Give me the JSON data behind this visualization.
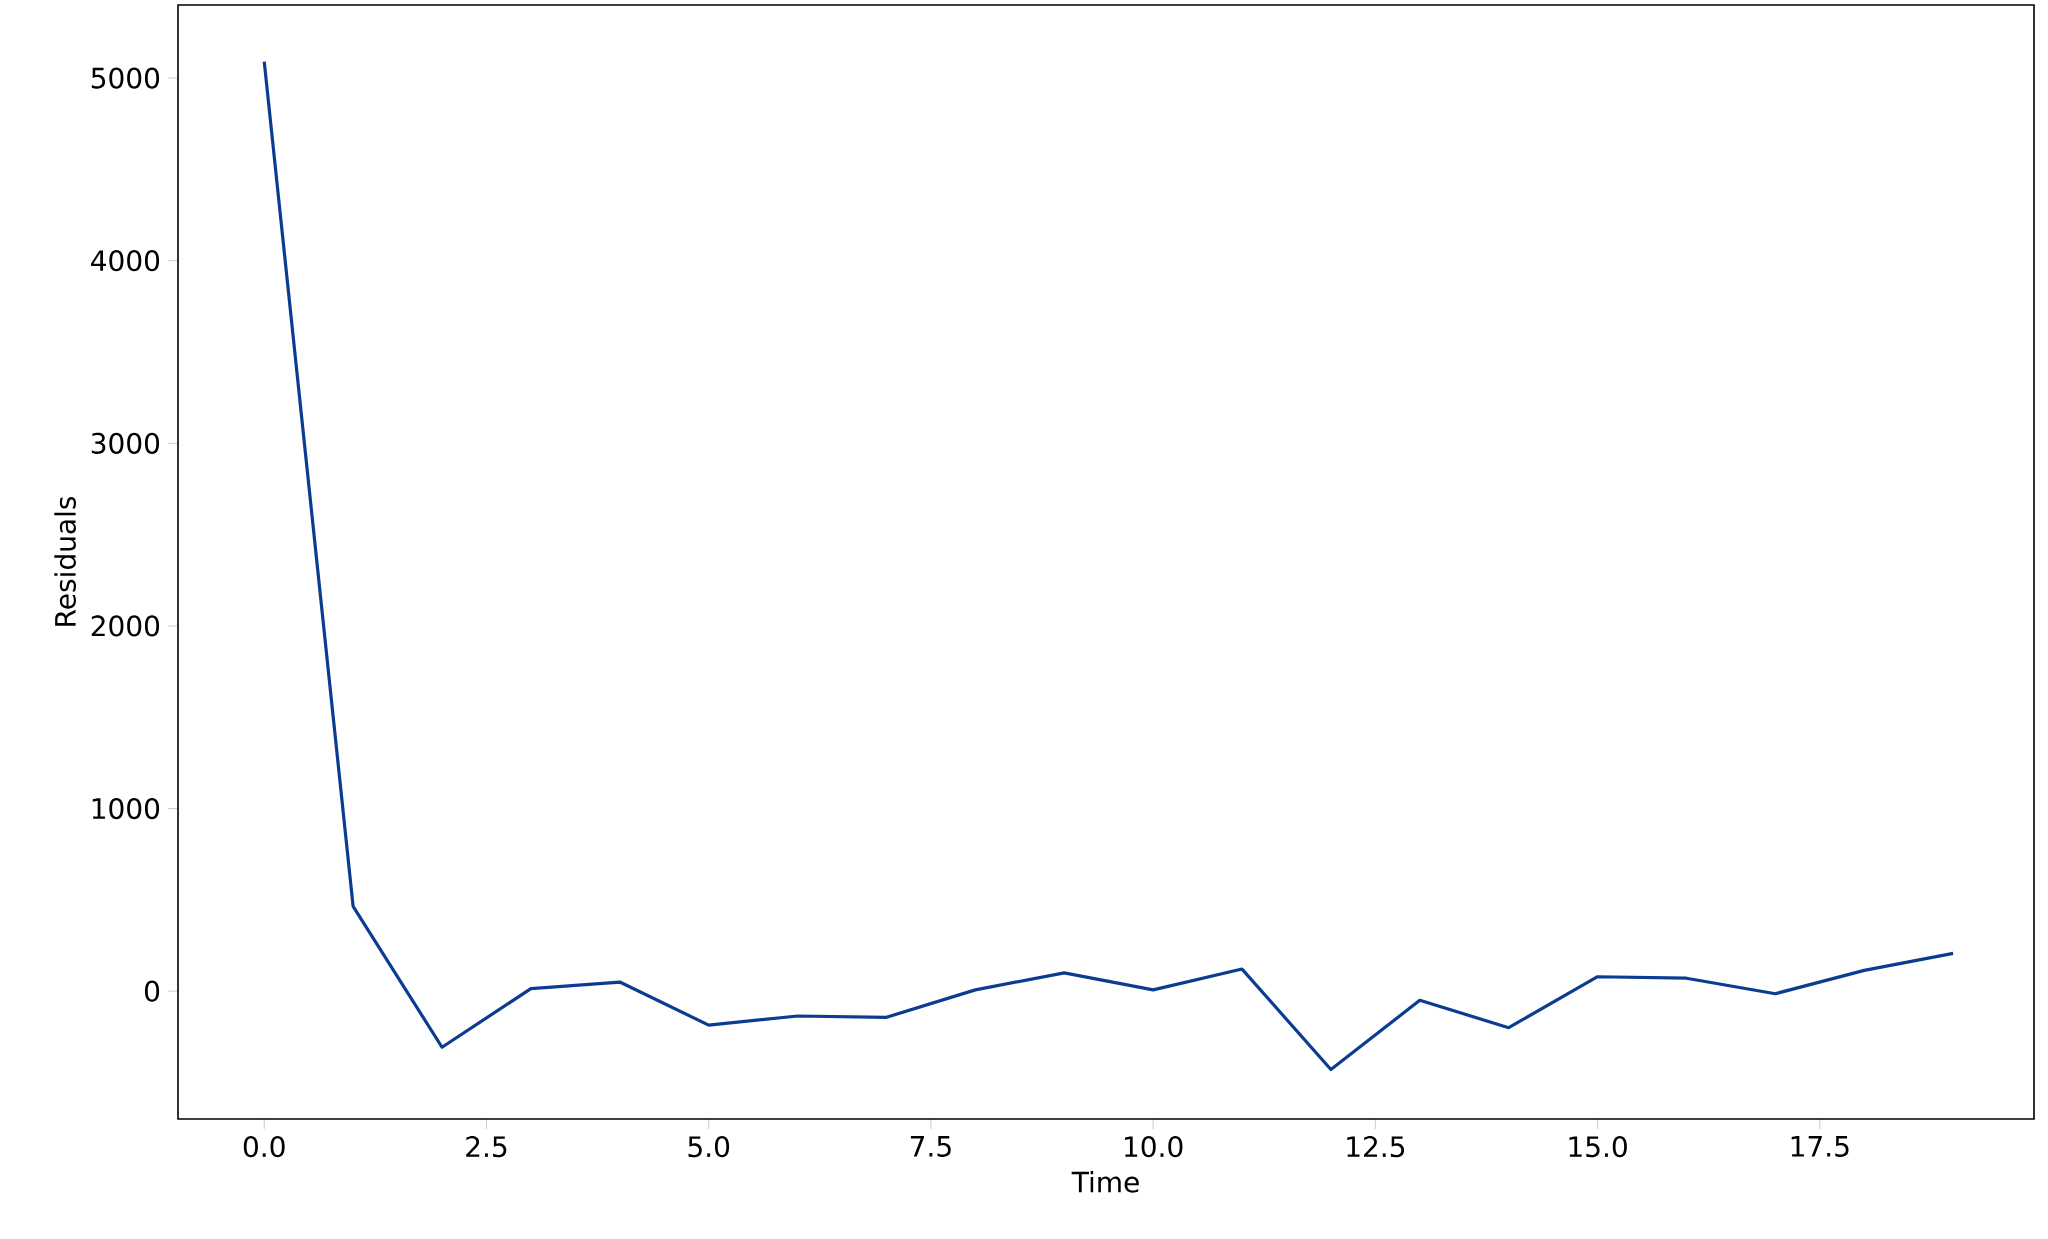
{
  "chart_data": {
    "type": "line",
    "xlabel": "Time",
    "ylabel": "Residuals",
    "x": [
      0,
      1,
      2,
      3,
      4,
      5,
      6,
      7,
      8,
      9,
      10,
      11,
      12,
      13,
      14,
      15,
      16,
      17,
      18,
      19
    ],
    "series": [
      {
        "color": "#0a3d91",
        "values": [
          5090,
          464,
          -307,
          14,
          50,
          -186,
          -136,
          -143,
          7,
          100,
          7,
          121,
          -429,
          -50,
          -200,
          79,
          71,
          -14,
          114,
          207
        ]
      }
    ],
    "xlim": [
      -0.97,
      19.91
    ],
    "ylim": [
      -700,
      5400
    ],
    "xticks": [
      {
        "value": 0,
        "label": "0.0"
      },
      {
        "value": 2.5,
        "label": "2.5"
      },
      {
        "value": 5,
        "label": "5.0"
      },
      {
        "value": 7.5,
        "label": "7.5"
      },
      {
        "value": 10,
        "label": "10.0"
      },
      {
        "value": 12.5,
        "label": "12.5"
      },
      {
        "value": 15,
        "label": "15.0"
      },
      {
        "value": 17.5,
        "label": "17.5"
      }
    ],
    "yticks": [
      0,
      1000,
      2000,
      3000,
      4000,
      5000
    ],
    "grid": false,
    "marker": "none",
    "line_style": "solid"
  }
}
